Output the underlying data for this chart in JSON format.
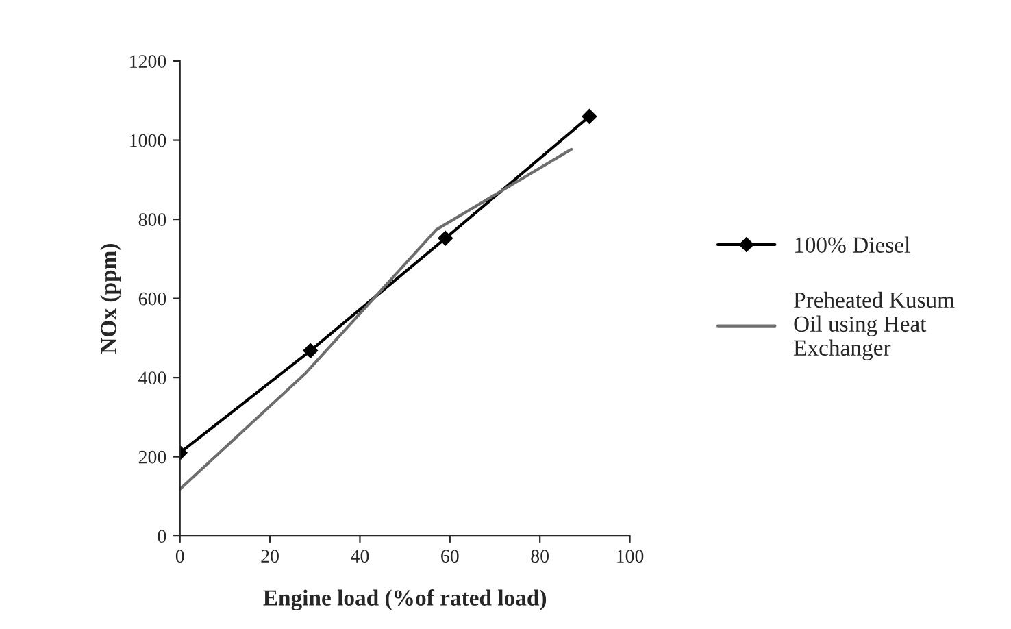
{
  "chart_data": {
    "type": "line",
    "xlabel": "Engine load (%of rated load)",
    "ylabel": "NOx (ppm)",
    "xlim": [
      0,
      100
    ],
    "xticks": [
      0,
      20,
      40,
      60,
      80,
      100
    ],
    "ylim": [
      0,
      1200
    ],
    "yticks": [
      0,
      200,
      400,
      600,
      800,
      1000,
      1200
    ],
    "grid": false,
    "legend": "right",
    "line_style": "solid",
    "series": [
      {
        "name": "100% Diesel",
        "color": "#000000",
        "marker": "diamond",
        "x": [
          0,
          29,
          59,
          91
        ],
        "values": [
          210,
          468,
          752,
          1060
        ]
      },
      {
        "name": "Preheated Kusum\nOil using Heat\nExchanger",
        "color": "#6e6e6e",
        "marker": "none",
        "x": [
          0,
          28,
          57,
          87
        ],
        "values": [
          118,
          412,
          774,
          977
        ]
      }
    ]
  }
}
